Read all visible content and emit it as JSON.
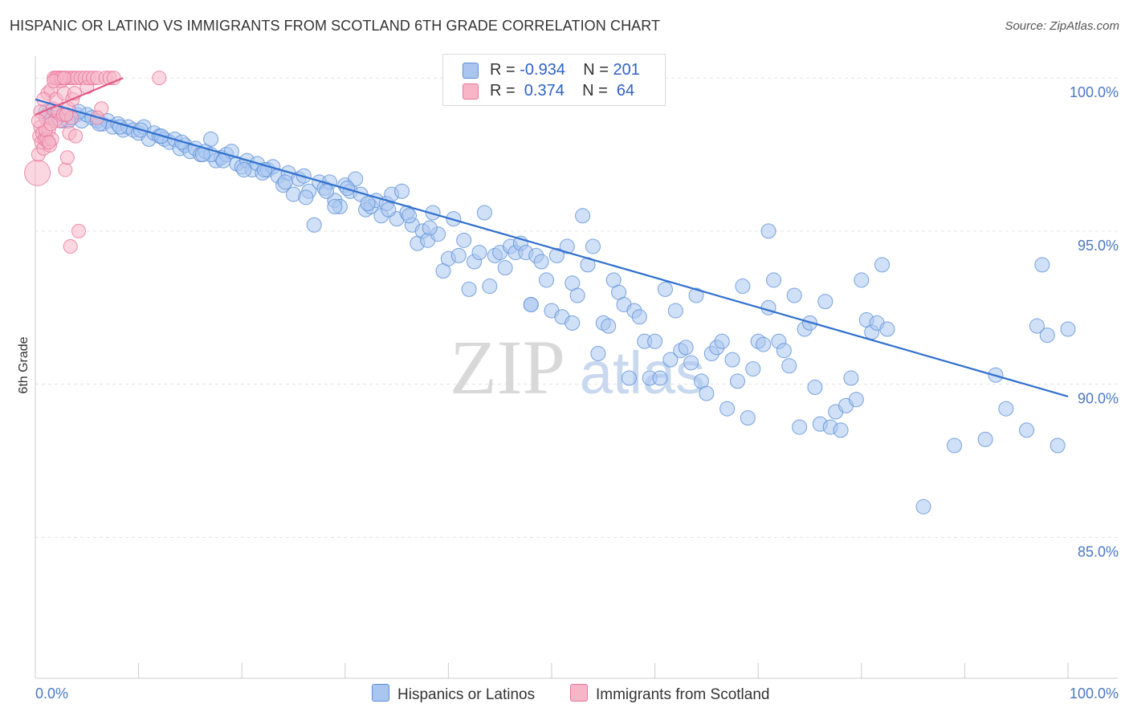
{
  "title": "HISPANIC OR LATINO VS IMMIGRANTS FROM SCOTLAND 6TH GRADE CORRELATION CHART",
  "source": "Source: ZipAtlas.com",
  "watermark": {
    "zip": "ZIP",
    "atlas": "atlas"
  },
  "legend": {
    "rows": [
      {
        "r_label": "R =",
        "r_value": "-0.934",
        "n_label": "N =",
        "n_value": "201",
        "color": "#a9c6f0"
      },
      {
        "r_label": "R =",
        "r_value": " 0.374",
        "n_label": "N =",
        "n_value": " 64",
        "color": "#f6b6c8"
      }
    ]
  },
  "bottom_legend": [
    {
      "label": "Hispanics or Latinos",
      "color": "#a9c6f0"
    },
    {
      "label": "Immigrants from Scotland",
      "color": "#f6b6c8"
    }
  ],
  "chart_data": {
    "type": "scatter",
    "title": "HISPANIC OR LATINO VS IMMIGRANTS FROM SCOTLAND 6TH GRADE CORRELATION CHART",
    "xlabel": "",
    "ylabel": "6th Grade",
    "xlim": [
      0,
      100
    ],
    "ylim": [
      80,
      100.5
    ],
    "x_tick_labels": [
      "0.0%",
      "100.0%"
    ],
    "y_ticks": [
      {
        "value": 100,
        "label": "100.0%"
      },
      {
        "value": 95,
        "label": "95.0%"
      },
      {
        "value": 90,
        "label": "90.0%"
      },
      {
        "value": 85,
        "label": "85.0%"
      }
    ],
    "series": [
      {
        "name": "Hispanics or Latinos",
        "color": "#a9c6f0",
        "stroke": "#5b8fd6",
        "trend": {
          "x": [
            0,
            100
          ],
          "y": [
            99.3,
            89.6
          ],
          "color": "#2f6fce"
        },
        "points": [
          [
            1,
            98.9
          ],
          [
            1.5,
            98.7
          ],
          [
            2,
            98.8
          ],
          [
            2.5,
            98.6
          ],
          [
            3,
            98.8
          ],
          [
            3.5,
            98.7
          ],
          [
            4,
            98.8
          ],
          [
            4.5,
            98.6
          ],
          [
            5,
            98.8
          ],
          [
            5.5,
            98.7
          ],
          [
            6,
            98.6
          ],
          [
            6.5,
            98.5
          ],
          [
            7,
            98.6
          ],
          [
            7.5,
            98.4
          ],
          [
            8,
            98.5
          ],
          [
            8.5,
            98.3
          ],
          [
            9,
            98.4
          ],
          [
            9.5,
            98.3
          ],
          [
            10,
            98.2
          ],
          [
            10.5,
            98.4
          ],
          [
            11,
            98.0
          ],
          [
            11.5,
            98.2
          ],
          [
            12,
            98.1
          ],
          [
            12.5,
            98.0
          ],
          [
            13,
            97.9
          ],
          [
            13.5,
            98.0
          ],
          [
            14,
            97.7
          ],
          [
            14.5,
            97.8
          ],
          [
            15,
            97.6
          ],
          [
            15.5,
            97.7
          ],
          [
            16,
            97.5
          ],
          [
            16.5,
            97.6
          ],
          [
            17,
            98.0
          ],
          [
            17.5,
            97.3
          ],
          [
            18,
            97.4
          ],
          [
            18.5,
            97.5
          ],
          [
            19,
            97.6
          ],
          [
            19.5,
            97.2
          ],
          [
            20,
            97.1
          ],
          [
            20.5,
            97.3
          ],
          [
            21,
            97.0
          ],
          [
            21.5,
            97.2
          ],
          [
            22,
            96.9
          ],
          [
            22.5,
            97.0
          ],
          [
            23,
            97.1
          ],
          [
            23.5,
            96.8
          ],
          [
            24,
            96.5
          ],
          [
            24.5,
            96.9
          ],
          [
            25,
            96.2
          ],
          [
            25.5,
            96.7
          ],
          [
            26,
            96.8
          ],
          [
            26.5,
            96.3
          ],
          [
            27,
            95.2
          ],
          [
            27.5,
            96.6
          ],
          [
            28,
            96.4
          ],
          [
            28.5,
            96.6
          ],
          [
            29,
            96.0
          ],
          [
            29.5,
            95.8
          ],
          [
            30,
            96.5
          ],
          [
            30.5,
            96.3
          ],
          [
            31,
            96.7
          ],
          [
            31.5,
            96.2
          ],
          [
            32,
            95.7
          ],
          [
            32.5,
            95.8
          ],
          [
            33,
            96.0
          ],
          [
            33.5,
            95.5
          ],
          [
            34,
            95.9
          ],
          [
            34.5,
            96.2
          ],
          [
            35,
            95.4
          ],
          [
            35.5,
            96.3
          ],
          [
            36,
            95.6
          ],
          [
            36.5,
            95.2
          ],
          [
            37,
            94.6
          ],
          [
            37.5,
            95.0
          ],
          [
            38,
            94.7
          ],
          [
            38.5,
            95.6
          ],
          [
            39,
            94.9
          ],
          [
            39.5,
            93.7
          ],
          [
            40,
            94.1
          ],
          [
            40.5,
            95.4
          ],
          [
            41,
            94.2
          ],
          [
            41.5,
            94.7
          ],
          [
            42,
            93.1
          ],
          [
            42.5,
            94.0
          ],
          [
            43,
            94.3
          ],
          [
            43.5,
            95.6
          ],
          [
            44,
            93.2
          ],
          [
            44.5,
            94.2
          ],
          [
            45,
            94.3
          ],
          [
            45.5,
            93.8
          ],
          [
            46,
            94.5
          ],
          [
            46.5,
            94.3
          ],
          [
            47,
            94.6
          ],
          [
            47.5,
            94.3
          ],
          [
            48,
            92.6
          ],
          [
            48.5,
            94.2
          ],
          [
            49,
            94.0
          ],
          [
            49.5,
            93.4
          ],
          [
            50,
            92.4
          ],
          [
            50.5,
            94.2
          ],
          [
            51,
            92.2
          ],
          [
            51.5,
            94.5
          ],
          [
            52,
            93.3
          ],
          [
            52.5,
            92.9
          ],
          [
            53,
            95.5
          ],
          [
            53.5,
            93.9
          ],
          [
            54,
            94.5
          ],
          [
            54.5,
            91.0
          ],
          [
            55,
            92.0
          ],
          [
            55.5,
            91.9
          ],
          [
            56,
            93.4
          ],
          [
            56.5,
            93.0
          ],
          [
            57,
            92.6
          ],
          [
            57.5,
            90.2
          ],
          [
            58,
            92.4
          ],
          [
            58.5,
            92.2
          ],
          [
            59,
            91.4
          ],
          [
            59.5,
            90.2
          ],
          [
            60,
            91.4
          ],
          [
            60.5,
            90.2
          ],
          [
            61,
            93.1
          ],
          [
            61.5,
            90.8
          ],
          [
            62,
            92.4
          ],
          [
            62.5,
            91.1
          ],
          [
            63,
            91.2
          ],
          [
            63.5,
            90.7
          ],
          [
            64,
            92.9
          ],
          [
            64.5,
            90.1
          ],
          [
            65,
            89.7
          ],
          [
            65.5,
            91.0
          ],
          [
            66,
            91.2
          ],
          [
            66.5,
            91.4
          ],
          [
            67,
            89.2
          ],
          [
            67.5,
            90.8
          ],
          [
            68,
            90.1
          ],
          [
            68.5,
            93.2
          ],
          [
            69,
            88.9
          ],
          [
            69.5,
            90.5
          ],
          [
            70,
            91.4
          ],
          [
            70.5,
            91.3
          ],
          [
            71,
            92.5
          ],
          [
            71.5,
            93.4
          ],
          [
            72,
            91.4
          ],
          [
            72.5,
            91.1
          ],
          [
            73,
            90.6
          ],
          [
            73.5,
            92.9
          ],
          [
            74,
            88.6
          ],
          [
            74.5,
            91.8
          ],
          [
            75,
            92.0
          ],
          [
            75.5,
            89.9
          ],
          [
            76,
            88.7
          ],
          [
            76.5,
            92.7
          ],
          [
            77,
            88.6
          ],
          [
            77.5,
            89.1
          ],
          [
            78,
            88.5
          ],
          [
            78.5,
            89.3
          ],
          [
            79,
            90.2
          ],
          [
            79.5,
            89.5
          ],
          [
            80,
            93.4
          ],
          [
            80.5,
            92.1
          ],
          [
            81,
            91.7
          ],
          [
            81.5,
            92.0
          ],
          [
            82,
            93.9
          ],
          [
            82.5,
            91.8
          ],
          [
            71,
            95.0
          ],
          [
            17,
            97.5
          ],
          [
            29,
            95.8
          ],
          [
            52,
            92.0
          ],
          [
            48,
            92.6
          ],
          [
            86,
            86.0
          ],
          [
            89,
            88.0
          ],
          [
            92,
            88.2
          ],
          [
            94,
            89.2
          ],
          [
            96,
            88.5
          ],
          [
            99,
            88.0
          ],
          [
            93,
            90.3
          ],
          [
            97,
            91.9
          ],
          [
            98,
            91.6
          ],
          [
            100,
            91.8
          ],
          [
            97.5,
            93.9
          ],
          [
            1.2,
            98.8
          ],
          [
            2.2,
            98.7
          ],
          [
            3.2,
            98.6
          ],
          [
            4.2,
            98.9
          ],
          [
            6.2,
            98.5
          ],
          [
            8.2,
            98.4
          ],
          [
            10.2,
            98.3
          ],
          [
            12.2,
            98.1
          ],
          [
            14.2,
            97.9
          ],
          [
            16.2,
            97.5
          ],
          [
            18.2,
            97.3
          ],
          [
            20.2,
            97.0
          ],
          [
            22.2,
            97.0
          ],
          [
            24.2,
            96.6
          ],
          [
            26.2,
            96.1
          ],
          [
            28.2,
            96.3
          ],
          [
            30.2,
            96.4
          ],
          [
            32.2,
            95.9
          ],
          [
            34.2,
            95.7
          ],
          [
            36.2,
            95.5
          ],
          [
            38.2,
            95.1
          ]
        ]
      },
      {
        "name": "Immigrants from Scotland",
        "color": "#f6b6c8",
        "stroke": "#e87399",
        "trend": {
          "x": [
            0,
            8.5
          ],
          "y": [
            98.8,
            100.0
          ],
          "color": "#e05a86"
        },
        "points": [
          [
            0.2,
            96.9
          ],
          [
            0.3,
            97.5
          ],
          [
            0.4,
            98.1
          ],
          [
            0.5,
            98.4
          ],
          [
            0.6,
            97.9
          ],
          [
            0.7,
            98.2
          ],
          [
            0.8,
            97.7
          ],
          [
            0.9,
            98.0
          ],
          [
            1.0,
            98.7
          ],
          [
            1.1,
            98.0
          ],
          [
            1.2,
            99.5
          ],
          [
            1.3,
            98.3
          ],
          [
            1.4,
            97.8
          ],
          [
            1.5,
            99.6
          ],
          [
            1.6,
            98.0
          ],
          [
            1.7,
            99.0
          ],
          [
            1.8,
            100.0
          ],
          [
            1.9,
            98.6
          ],
          [
            2.0,
            99.3
          ],
          [
            2.1,
            100.0
          ],
          [
            2.2,
            98.9
          ],
          [
            2.3,
            100.0
          ],
          [
            2.4,
            98.6
          ],
          [
            2.5,
            99.9
          ],
          [
            2.6,
            100.0
          ],
          [
            2.7,
            98.8
          ],
          [
            2.8,
            99.5
          ],
          [
            2.9,
            97.0
          ],
          [
            3.0,
            100.0
          ],
          [
            3.1,
            97.4
          ],
          [
            3.2,
            99.0
          ],
          [
            3.3,
            98.2
          ],
          [
            3.4,
            100.0
          ],
          [
            3.5,
            98.7
          ],
          [
            3.6,
            99.3
          ],
          [
            3.7,
            100.0
          ],
          [
            3.8,
            99.5
          ],
          [
            3.9,
            98.1
          ],
          [
            4.0,
            100.0
          ],
          [
            4.2,
            95.0
          ],
          [
            3.4,
            94.5
          ],
          [
            4.4,
            100.0
          ],
          [
            4.8,
            100.0
          ],
          [
            5.0,
            99.7
          ],
          [
            5.2,
            100.0
          ],
          [
            5.6,
            100.0
          ],
          [
            6.0,
            100.0
          ],
          [
            6.4,
            99.0
          ],
          [
            6.8,
            100.0
          ],
          [
            7.2,
            100.0
          ],
          [
            7.6,
            100.0
          ],
          [
            12.0,
            100.0
          ],
          [
            0.5,
            98.9
          ],
          [
            1.0,
            98.3
          ],
          [
            1.5,
            98.5
          ],
          [
            2.0,
            100.0
          ],
          [
            2.5,
            100.0
          ],
          [
            3.0,
            98.8
          ],
          [
            0.8,
            99.3
          ],
          [
            1.8,
            99.9
          ],
          [
            2.8,
            100.0
          ],
          [
            0.3,
            98.6
          ],
          [
            1.3,
            97.9
          ],
          [
            6.0,
            98.7
          ]
        ]
      }
    ]
  }
}
